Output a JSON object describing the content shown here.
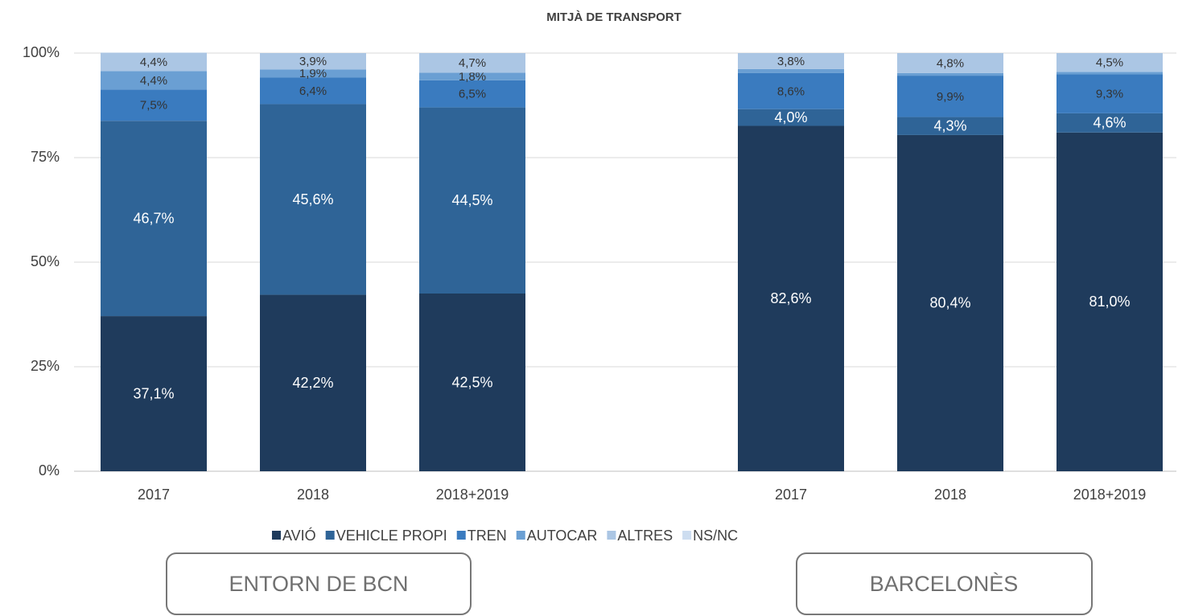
{
  "chart_data": {
    "type": "stacked_bar",
    "title": "MITJÀ DE TRANSPORT",
    "categories": [
      "2017",
      "2018",
      "2018+2019",
      null,
      "2017",
      "2018",
      "2018+2019"
    ],
    "series": [
      {
        "name": "AVIÓ",
        "color": "#1f3b5c",
        "values": [
          37.1,
          42.2,
          42.5,
          null,
          82.6,
          80.4,
          81.0
        ],
        "value_labels": [
          "37,1%",
          "42,2%",
          "42,5%",
          null,
          "82,6%",
          "80,4%",
          "81,0%"
        ]
      },
      {
        "name": "VEHICLE PROPI",
        "color": "#2f6497",
        "values": [
          46.7,
          45.6,
          44.5,
          null,
          4.0,
          4.3,
          4.6
        ],
        "value_labels": [
          "46,7%",
          "45,6%",
          "44,5%",
          null,
          "4,0%",
          "4,3%",
          "4,6%"
        ]
      },
      {
        "name": "TREN",
        "color": "#3a7bbf",
        "values": [
          7.5,
          6.4,
          6.5,
          null,
          8.6,
          9.9,
          9.3
        ],
        "value_labels": [
          "7,5%",
          "6,4%",
          "6,5%",
          null,
          "8,6%",
          "9,9%",
          "9,3%"
        ]
      },
      {
        "name": "AUTOCAR",
        "color": "#6a9fd3",
        "values": [
          4.4,
          1.9,
          1.8,
          null,
          1.0,
          0.6,
          0.6
        ],
        "value_labels": [
          "4,4%",
          "1,9%",
          "1,8%",
          null,
          null,
          null,
          null
        ]
      },
      {
        "name": "ALTRES",
        "color": "#abc6e4",
        "values": [
          4.4,
          3.9,
          4.7,
          null,
          3.8,
          4.8,
          4.5
        ],
        "value_labels": [
          "4,4%",
          "3,9%",
          "4,7%",
          null,
          "3,8%",
          "4,8%",
          "4,5%"
        ]
      },
      {
        "name": "NS/NC",
        "color": "#cdddf0",
        "values": [
          0,
          0,
          0,
          null,
          0,
          0,
          0
        ],
        "value_labels": [
          null,
          null,
          null,
          null,
          null,
          null,
          null
        ]
      }
    ],
    "ylim": [
      0,
      100
    ],
    "yticks": [
      {
        "value": 0,
        "label": "0%"
      },
      {
        "value": 25,
        "label": "25%"
      },
      {
        "value": 50,
        "label": "50%"
      },
      {
        "value": 75,
        "label": "75%"
      },
      {
        "value": 100,
        "label": "100%"
      }
    ],
    "grid": true,
    "legend": "bottom",
    "annotations": [
      "ENTORN DE BCN",
      "BARCELONÈS"
    ]
  }
}
